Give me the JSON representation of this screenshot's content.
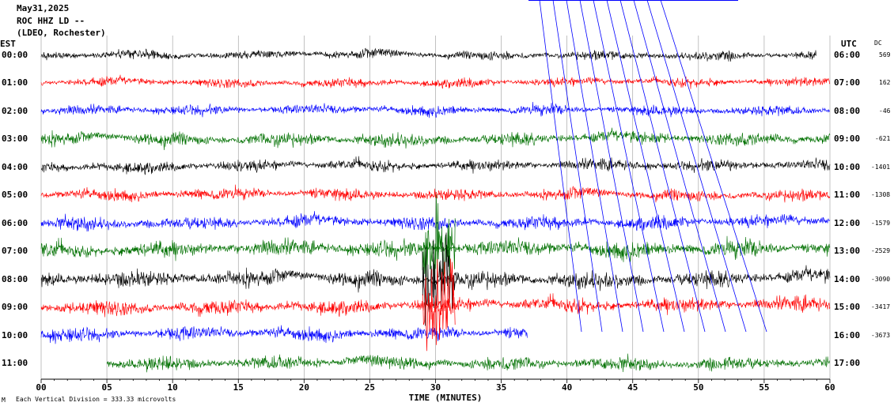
{
  "header": {
    "date": "May31,2025",
    "station": "ROC HHZ LD --",
    "network": "(LDEO, Rochester)"
  },
  "left_axis_label": "EST",
  "right_axis_label": "UTC",
  "dc_header": "DC",
  "footer": {
    "prefix": "M",
    "scale_text": "Each Vertical Division =  333.33 microvolts"
  },
  "colors": {
    "black": "#000000",
    "red": "#ff0000",
    "blue": "#0000ff",
    "green": "#007000",
    "grid": "#999999"
  },
  "chart_data": {
    "type": "line",
    "xlabel": "TIME (MINUTES)",
    "xlim": [
      0,
      60
    ],
    "x_ticks": [
      "00",
      "05",
      "10",
      "15",
      "20",
      "25",
      "30",
      "35",
      "40",
      "45",
      "50",
      "55",
      "60"
    ],
    "series": [
      {
        "est": "00:00",
        "utc": "06:00",
        "dc": "569",
        "color": "black",
        "end_minute": 59,
        "amplitude": 0.55,
        "start_minute": 0
      },
      {
        "est": "01:00",
        "utc": "07:00",
        "dc": "162",
        "color": "red",
        "end_minute": 60,
        "amplitude": 0.55,
        "start_minute": 0
      },
      {
        "est": "02:00",
        "utc": "08:00",
        "dc": "-46",
        "color": "blue",
        "end_minute": 60,
        "amplitude": 0.6,
        "start_minute": 0
      },
      {
        "est": "03:00",
        "utc": "09:00",
        "dc": "-621",
        "color": "green",
        "end_minute": 60,
        "amplitude": 0.8,
        "start_minute": 0
      },
      {
        "est": "04:00",
        "utc": "10:00",
        "dc": "-1401",
        "color": "black",
        "end_minute": 60,
        "amplitude": 0.7,
        "start_minute": 0
      },
      {
        "est": "05:00",
        "utc": "11:00",
        "dc": "-1308",
        "color": "red",
        "end_minute": 60,
        "amplitude": 0.7,
        "start_minute": 0
      },
      {
        "est": "06:00",
        "utc": "12:00",
        "dc": "-1579",
        "color": "blue",
        "end_minute": 60,
        "amplitude": 0.8,
        "start_minute": 0
      },
      {
        "est": "07:00",
        "utc": "13:00",
        "dc": "-2529",
        "color": "green",
        "end_minute": 60,
        "amplitude": 1.0,
        "start_minute": 0
      },
      {
        "est": "08:00",
        "utc": "14:00",
        "dc": "-3090",
        "color": "black",
        "end_minute": 60,
        "amplitude": 1.0,
        "start_minute": 0
      },
      {
        "est": "09:00",
        "utc": "15:00",
        "dc": "-3417",
        "color": "red",
        "end_minute": 60,
        "amplitude": 0.9,
        "start_minute": 0
      },
      {
        "est": "10:00",
        "utc": "16:00",
        "dc": "-3673",
        "color": "blue",
        "end_minute": 37,
        "amplitude": 0.8,
        "start_minute": 0
      },
      {
        "est": "11:00",
        "utc": "17:00",
        "dc": "",
        "color": "green",
        "end_minute": 60,
        "amplitude": 0.8,
        "start_minute": 5
      }
    ]
  }
}
